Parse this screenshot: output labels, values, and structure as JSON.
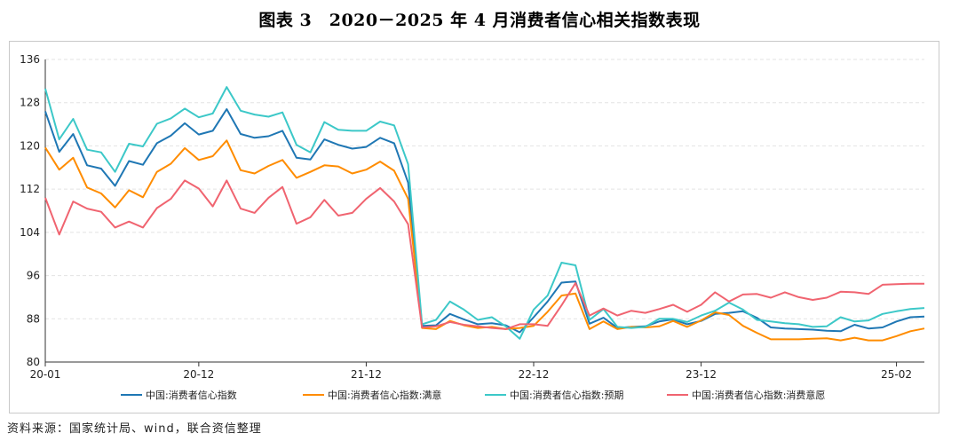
{
  "title": "图表 3　2020－2025 年 4 月消费者信心相关指数表现",
  "source": "资料来源：国家统计局、wind，联合资信整理",
  "colors": {
    "grid": "#e3e3e3",
    "axis": "#333333",
    "series": [
      "#1f77b4",
      "#ff8c00",
      "#3cc8c8",
      "#f06470"
    ]
  },
  "chart_data": {
    "type": "line",
    "x": [
      "2020-01",
      "2020-02",
      "2020-03",
      "2020-04",
      "2020-05",
      "2020-06",
      "2020-07",
      "2020-08",
      "2020-09",
      "2020-10",
      "2020-11",
      "2020-12",
      "2021-01",
      "2021-02",
      "2021-03",
      "2021-04",
      "2021-05",
      "2021-06",
      "2021-07",
      "2021-08",
      "2021-09",
      "2021-10",
      "2021-11",
      "2021-12",
      "2022-01",
      "2022-02",
      "2022-03",
      "2022-04",
      "2022-05",
      "2022-06",
      "2022-07",
      "2022-08",
      "2022-09",
      "2022-10",
      "2022-11",
      "2022-12",
      "2023-01",
      "2023-02",
      "2023-03",
      "2023-04",
      "2023-05",
      "2023-06",
      "2023-07",
      "2023-08",
      "2023-09",
      "2023-10",
      "2023-11",
      "2023-12",
      "2024-01",
      "2024-02",
      "2024-03",
      "2024-04",
      "2024-05",
      "2024-06",
      "2024-07",
      "2024-08",
      "2024-09",
      "2024-10",
      "2024-11",
      "2024-12",
      "2025-01",
      "2025-02",
      "2025-03",
      "2025-04"
    ],
    "x_ticks": [
      "20-01",
      "20-12",
      "21-12",
      "22-12",
      "23-12",
      "25-02"
    ],
    "y_ticks": [
      "80",
      "88",
      "96",
      "104",
      "112",
      "120",
      "128",
      "136"
    ],
    "ylim": [
      80,
      136
    ],
    "grid": true,
    "legend_position": "bottom",
    "series": [
      {
        "name": "中国:消费者信心指数",
        "values": [
          126.4,
          118.9,
          122.2,
          116.4,
          115.8,
          112.6,
          117.2,
          116.5,
          120.5,
          121.9,
          124.2,
          122.1,
          122.8,
          126.8,
          122.2,
          121.5,
          121.8,
          122.8,
          117.8,
          117.5,
          121.2,
          120.2,
          119.5,
          119.8,
          121.5,
          120.5,
          113.2,
          86.7,
          86.8,
          88.9,
          87.9,
          87.0,
          87.2,
          86.8,
          85.5,
          88.3,
          91.2,
          94.7,
          94.9,
          87.1,
          88.2,
          86.3,
          86.5,
          86.6,
          87.5,
          87.9,
          87.0,
          87.6,
          88.9,
          89.1,
          89.4,
          88.2,
          86.4,
          86.2,
          86.1,
          86.0,
          85.8,
          85.7,
          86.9,
          86.2,
          86.4,
          87.5,
          88.3,
          88.4
        ]
      },
      {
        "name": "中国:消费者信心指数:满意",
        "values": [
          119.7,
          115.6,
          117.8,
          112.3,
          111.2,
          108.6,
          111.8,
          110.5,
          115.2,
          116.7,
          119.6,
          117.4,
          118.1,
          121.0,
          115.5,
          114.9,
          116.3,
          117.4,
          114.1,
          115.2,
          116.4,
          116.2,
          114.9,
          115.6,
          117.1,
          115.4,
          110.2,
          86.3,
          86.1,
          87.6,
          86.8,
          86.3,
          86.5,
          86.1,
          86.3,
          86.7,
          89.3,
          92.3,
          92.7,
          86.1,
          87.5,
          86.1,
          86.5,
          86.4,
          86.6,
          87.6,
          86.5,
          87.7,
          89.2,
          88.7,
          86.7,
          85.4,
          84.2,
          84.2,
          84.2,
          84.3,
          84.4,
          84.0,
          84.5,
          84.0,
          84.0,
          84.8,
          85.7,
          86.2
        ]
      },
      {
        "name": "中国:消费者信心指数:预期",
        "values": [
          130.6,
          121.2,
          125.0,
          119.3,
          118.8,
          115.2,
          120.4,
          119.9,
          124.1,
          125.1,
          126.9,
          125.3,
          126.0,
          130.9,
          126.5,
          125.8,
          125.4,
          126.2,
          120.2,
          118.8,
          124.4,
          123.0,
          122.8,
          122.8,
          124.5,
          123.8,
          116.6,
          87.0,
          87.8,
          91.2,
          89.7,
          87.8,
          88.3,
          86.6,
          84.3,
          89.7,
          92.3,
          98.4,
          97.9,
          87.8,
          89.8,
          86.5,
          86.3,
          86.5,
          88.0,
          88.0,
          87.4,
          88.6,
          89.5,
          91.0,
          89.7,
          87.8,
          87.5,
          87.2,
          87.0,
          86.5,
          86.6,
          88.3,
          87.5,
          87.7,
          88.9,
          89.4,
          89.8,
          90.0
        ]
      },
      {
        "name": "中国:消费者信心指数:消费意愿",
        "values": [
          110.4,
          103.6,
          109.7,
          108.4,
          107.8,
          104.9,
          106.0,
          104.9,
          108.5,
          110.2,
          113.6,
          112.1,
          108.8,
          113.6,
          108.4,
          107.6,
          110.4,
          112.4,
          105.6,
          106.8,
          110.0,
          107.1,
          107.6,
          110.2,
          112.2,
          109.7,
          105.5,
          86.4,
          86.6,
          87.4,
          86.9,
          86.6,
          86.3,
          86.1,
          87.0,
          87.0,
          86.7,
          90.5,
          94.6,
          88.6,
          89.9,
          88.6,
          89.5,
          89.1,
          89.8,
          90.6,
          89.3,
          90.6,
          92.9,
          91.2,
          92.5,
          92.6,
          91.9,
          92.9,
          92.0,
          91.5,
          91.9,
          93.0,
          92.9,
          92.6,
          94.3,
          94.4,
          94.5,
          94.5
        ]
      }
    ]
  }
}
